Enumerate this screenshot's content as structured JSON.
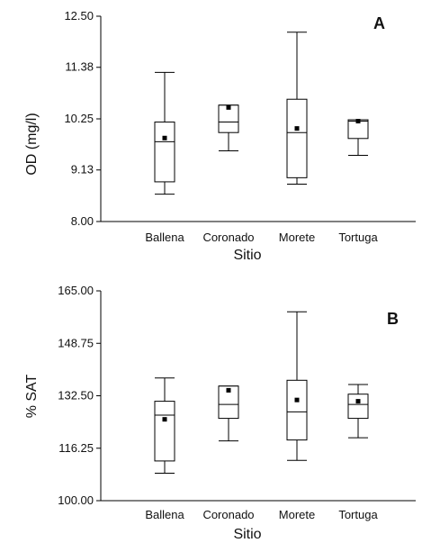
{
  "chart_data": [
    {
      "type": "boxplot",
      "panel_label": "A",
      "xlabel": "Sitio",
      "ylabel": "OD (mg/l)",
      "ylim": [
        8.0,
        12.5
      ],
      "yticks": [
        "8.00",
        "9.13",
        "10.25",
        "11.38",
        "12.50"
      ],
      "categories": [
        "Ballena",
        "Coronado",
        "Morete",
        "Tortuga"
      ],
      "boxes": [
        {
          "min": 8.6,
          "q1": 8.87,
          "median": 9.75,
          "q3": 10.18,
          "max": 11.27,
          "mean": 9.83
        },
        {
          "min": 9.55,
          "q1": 9.95,
          "median": 10.18,
          "q3": 10.55,
          "max": 10.55,
          "mean": 10.5
        },
        {
          "min": 8.82,
          "q1": 8.96,
          "median": 9.95,
          "q3": 10.68,
          "max": 12.15,
          "mean": 10.04
        },
        {
          "min": 9.45,
          "q1": 9.82,
          "median": 10.2,
          "q3": 10.23,
          "max": 10.23,
          "mean": 10.2
        }
      ]
    },
    {
      "type": "boxplot",
      "panel_label": "B",
      "xlabel": "Sitio",
      "ylabel": "% SAT",
      "ylim": [
        100.0,
        165.0
      ],
      "yticks": [
        "100.00",
        "116.25",
        "132.50",
        "148.75",
        "165.00"
      ],
      "categories": [
        "Ballena",
        "Coronado",
        "Morete",
        "Tortuga"
      ],
      "boxes": [
        {
          "min": 108.5,
          "q1": 112.3,
          "median": 126.5,
          "q3": 130.8,
          "max": 138.0,
          "mean": 125.2
        },
        {
          "min": 118.5,
          "q1": 125.5,
          "median": 129.8,
          "q3": 135.5,
          "max": 135.5,
          "mean": 134.2
        },
        {
          "min": 112.5,
          "q1": 118.8,
          "median": 127.5,
          "q3": 137.3,
          "max": 158.5,
          "mean": 131.2
        },
        {
          "min": 119.5,
          "q1": 125.5,
          "median": 129.8,
          "q3": 133.0,
          "max": 136.0,
          "mean": 130.8
        }
      ]
    }
  ]
}
